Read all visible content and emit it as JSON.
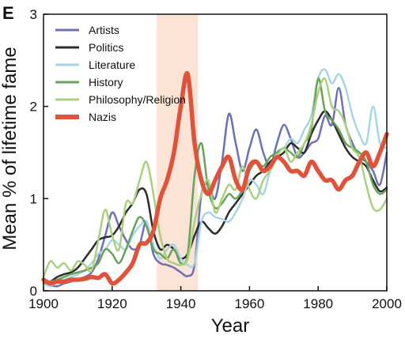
{
  "chart_data": {
    "type": "line",
    "panel_label": "E",
    "xlabel": "Year",
    "ylabel": "Mean % of lifetime fame",
    "xlim": [
      1900,
      2000
    ],
    "ylim": [
      0,
      3
    ],
    "x_ticks": [
      1900,
      1920,
      1940,
      1960,
      1980,
      2000
    ],
    "y_ticks": [
      0,
      1,
      2,
      3
    ],
    "legend_position": "top-left",
    "grid": false,
    "shaded_region": {
      "x_start": 1933,
      "x_end": 1945,
      "color": "#fbe3d6"
    },
    "series": [
      {
        "name": "Artists",
        "color": "#6c70b8",
        "width": 2.5,
        "x": [
          1900,
          1902,
          1904,
          1906,
          1908,
          1910,
          1912,
          1914,
          1916,
          1918,
          1920,
          1922,
          1924,
          1926,
          1928,
          1930,
          1932,
          1934,
          1936,
          1938,
          1940,
          1942,
          1944,
          1946,
          1948,
          1950,
          1952,
          1954,
          1956,
          1958,
          1960,
          1962,
          1964,
          1966,
          1968,
          1970,
          1972,
          1974,
          1976,
          1978,
          1980,
          1982,
          1984,
          1986,
          1988,
          1990,
          1992,
          1994,
          1996,
          1998,
          2000
        ],
        "y": [
          0.1,
          0.06,
          0.05,
          0.08,
          0.1,
          0.13,
          0.15,
          0.2,
          0.35,
          0.6,
          0.85,
          0.7,
          0.55,
          0.45,
          0.5,
          0.75,
          0.4,
          0.3,
          0.28,
          0.25,
          0.2,
          0.16,
          0.28,
          1.05,
          1.15,
          1.0,
          1.4,
          1.92,
          1.6,
          1.3,
          1.55,
          1.75,
          1.5,
          1.35,
          1.6,
          1.8,
          1.65,
          1.45,
          1.5,
          1.6,
          1.65,
          1.9,
          1.8,
          2.2,
          1.8,
          1.6,
          1.45,
          1.4,
          1.3,
          1.15,
          1.5
        ]
      },
      {
        "name": "Politics",
        "color": "#2b2b2b",
        "width": 2.5,
        "x": [
          1900,
          1902,
          1904,
          1906,
          1908,
          1910,
          1912,
          1914,
          1916,
          1918,
          1920,
          1922,
          1924,
          1926,
          1928,
          1930,
          1932,
          1934,
          1936,
          1938,
          1940,
          1942,
          1944,
          1946,
          1948,
          1950,
          1952,
          1954,
          1956,
          1958,
          1960,
          1962,
          1964,
          1966,
          1968,
          1970,
          1972,
          1974,
          1976,
          1978,
          1980,
          1982,
          1984,
          1986,
          1988,
          1990,
          1992,
          1994,
          1996,
          1998,
          2000
        ],
        "y": [
          0.08,
          0.1,
          0.15,
          0.18,
          0.2,
          0.25,
          0.35,
          0.45,
          0.55,
          0.58,
          0.6,
          0.7,
          0.85,
          0.95,
          1.1,
          1.05,
          0.65,
          0.45,
          0.5,
          0.45,
          0.35,
          0.4,
          0.6,
          0.75,
          0.68,
          0.62,
          0.7,
          0.85,
          0.95,
          1.05,
          1.15,
          1.25,
          1.3,
          1.4,
          1.45,
          1.5,
          1.6,
          1.55,
          1.5,
          1.7,
          1.85,
          1.95,
          1.85,
          1.7,
          1.55,
          1.45,
          1.4,
          1.35,
          1.2,
          1.08,
          1.12
        ]
      },
      {
        "name": "Literature",
        "color": "#a6d6e6",
        "width": 2.5,
        "x": [
          1900,
          1902,
          1904,
          1906,
          1908,
          1910,
          1912,
          1914,
          1916,
          1918,
          1920,
          1922,
          1924,
          1926,
          1928,
          1930,
          1932,
          1934,
          1936,
          1938,
          1940,
          1942,
          1944,
          1946,
          1948,
          1950,
          1952,
          1954,
          1956,
          1958,
          1960,
          1962,
          1964,
          1966,
          1968,
          1970,
          1972,
          1974,
          1976,
          1978,
          1980,
          1982,
          1984,
          1986,
          1988,
          1990,
          1992,
          1994,
          1996,
          1998,
          2000
        ],
        "y": [
          0.08,
          0.05,
          0.1,
          0.12,
          0.15,
          0.18,
          0.22,
          0.3,
          0.4,
          0.45,
          0.55,
          0.5,
          0.45,
          0.6,
          0.7,
          0.75,
          0.5,
          0.35,
          0.45,
          0.5,
          0.35,
          0.28,
          0.3,
          0.75,
          0.85,
          0.8,
          0.78,
          0.75,
          0.85,
          1.0,
          1.2,
          1.15,
          1.05,
          1.3,
          1.5,
          1.55,
          1.65,
          1.6,
          1.75,
          1.9,
          2.3,
          2.4,
          2.25,
          2.35,
          2.2,
          1.9,
          1.7,
          1.6,
          2.0,
          1.6,
          1.55
        ]
      },
      {
        "name": "History",
        "color": "#67a35a",
        "width": 2.5,
        "x": [
          1900,
          1902,
          1904,
          1906,
          1908,
          1910,
          1912,
          1914,
          1916,
          1918,
          1920,
          1922,
          1924,
          1926,
          1928,
          1930,
          1932,
          1934,
          1936,
          1938,
          1940,
          1942,
          1944,
          1946,
          1948,
          1950,
          1952,
          1954,
          1956,
          1958,
          1960,
          1962,
          1964,
          1966,
          1968,
          1970,
          1972,
          1974,
          1976,
          1978,
          1980,
          1982,
          1984,
          1986,
          1988,
          1990,
          1992,
          1994,
          1996,
          1998,
          2000
        ],
        "y": [
          0.08,
          0.1,
          0.12,
          0.15,
          0.18,
          0.2,
          0.22,
          0.25,
          0.3,
          0.45,
          0.4,
          0.3,
          0.45,
          0.65,
          0.8,
          0.7,
          0.45,
          0.4,
          0.35,
          0.45,
          0.3,
          0.4,
          1.25,
          1.6,
          1.1,
          0.9,
          0.95,
          1.05,
          1.0,
          1.1,
          1.3,
          1.4,
          1.35,
          1.45,
          1.5,
          1.55,
          1.5,
          1.45,
          1.6,
          1.75,
          2.3,
          1.95,
          1.85,
          1.75,
          1.6,
          1.55,
          1.5,
          1.4,
          1.15,
          1.05,
          1.1
        ]
      },
      {
        "name": "Philosophy/Religion",
        "color": "#a9d17c",
        "width": 2.5,
        "x": [
          1900,
          1902,
          1904,
          1906,
          1908,
          1910,
          1912,
          1914,
          1916,
          1918,
          1920,
          1922,
          1924,
          1926,
          1928,
          1930,
          1932,
          1934,
          1936,
          1938,
          1940,
          1942,
          1944,
          1946,
          1948,
          1950,
          1952,
          1954,
          1956,
          1958,
          1960,
          1962,
          1964,
          1966,
          1968,
          1970,
          1972,
          1974,
          1976,
          1978,
          1980,
          1982,
          1984,
          1986,
          1988,
          1990,
          1992,
          1994,
          1996,
          1998,
          2000
        ],
        "y": [
          0.15,
          0.32,
          0.25,
          0.3,
          0.22,
          0.32,
          0.28,
          0.22,
          0.55,
          0.88,
          0.6,
          0.45,
          0.95,
          0.95,
          1.2,
          1.4,
          1.05,
          0.6,
          0.35,
          0.3,
          0.28,
          0.35,
          0.75,
          1.05,
          1.2,
          0.85,
          1.0,
          1.15,
          1.1,
          1.35,
          1.1,
          1.0,
          1.2,
          1.3,
          1.45,
          1.55,
          1.4,
          1.5,
          1.6,
          1.8,
          2.15,
          2.3,
          2.0,
          1.95,
          1.8,
          1.55,
          1.45,
          1.15,
          0.9,
          0.88,
          1.0
        ]
      },
      {
        "name": "Nazis",
        "color": "#e0533a",
        "width": 5.5,
        "x": [
          1900,
          1902,
          1904,
          1906,
          1908,
          1910,
          1912,
          1914,
          1916,
          1918,
          1920,
          1922,
          1924,
          1926,
          1928,
          1930,
          1932,
          1934,
          1936,
          1938,
          1940,
          1942,
          1944,
          1946,
          1948,
          1950,
          1952,
          1954,
          1956,
          1958,
          1960,
          1962,
          1964,
          1966,
          1968,
          1970,
          1972,
          1974,
          1976,
          1978,
          1980,
          1982,
          1984,
          1986,
          1988,
          1990,
          1992,
          1994,
          1996,
          1998,
          2000
        ],
        "y": [
          0.12,
          0.08,
          0.1,
          0.1,
          0.12,
          0.12,
          0.13,
          0.15,
          0.14,
          0.18,
          0.08,
          0.12,
          0.2,
          0.3,
          0.5,
          0.52,
          0.65,
          1.0,
          1.2,
          1.5,
          2.0,
          2.35,
          1.6,
          1.2,
          1.05,
          1.2,
          1.35,
          1.45,
          1.2,
          1.1,
          1.35,
          1.4,
          1.3,
          1.35,
          1.45,
          1.4,
          1.3,
          1.3,
          1.25,
          1.4,
          1.3,
          1.2,
          1.2,
          1.1,
          1.2,
          1.25,
          1.4,
          1.5,
          1.35,
          1.5,
          1.7
        ]
      }
    ]
  }
}
